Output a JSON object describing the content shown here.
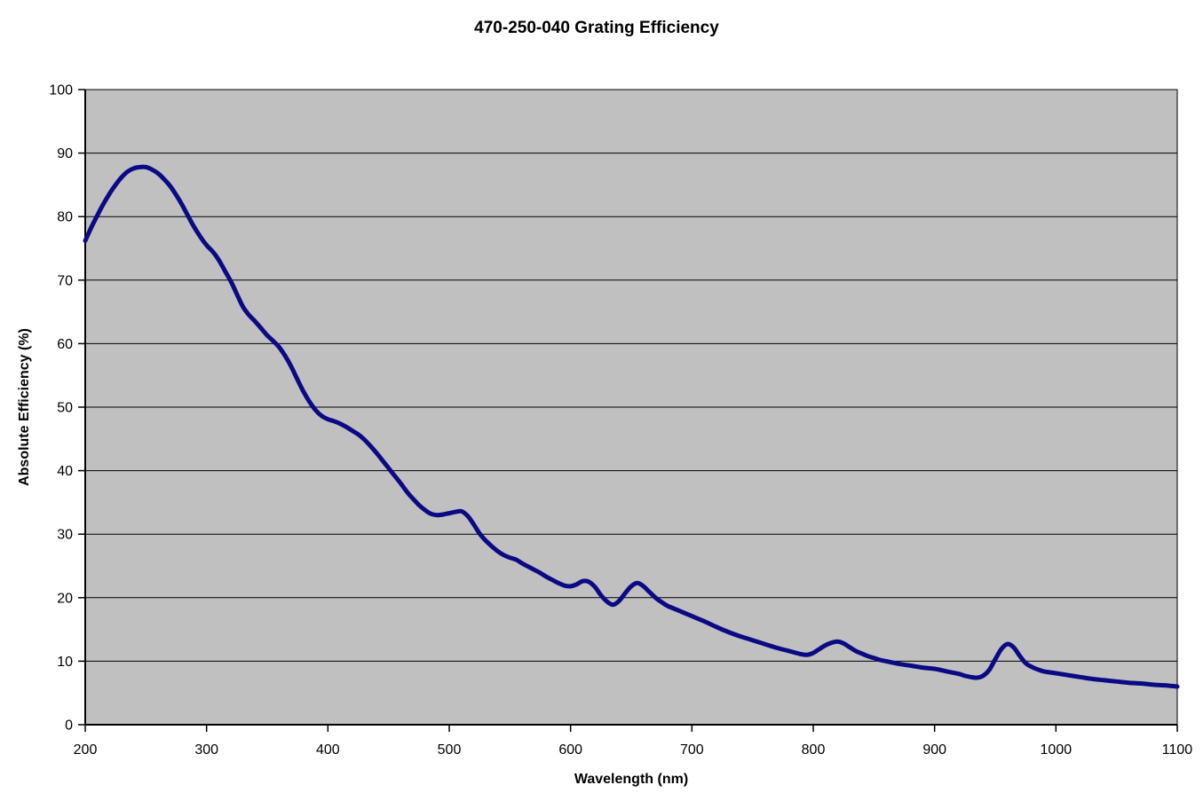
{
  "chart_data": {
    "type": "line",
    "title": "470-250-040 Grating Efficiency",
    "xlabel": "Wavelength (nm)",
    "ylabel": "Absolute Efficiency (%)",
    "xlim": [
      200,
      1100
    ],
    "ylim": [
      0,
      100
    ],
    "x_ticks": [
      200,
      300,
      400,
      500,
      600,
      700,
      800,
      900,
      1000,
      1100
    ],
    "y_ticks": [
      0,
      10,
      20,
      30,
      40,
      50,
      60,
      70,
      80,
      90,
      100
    ],
    "grid": "horizontal-only",
    "legend": "none",
    "colors": {
      "line": "#0a0a85",
      "plot_bg": "#c0c0c0",
      "outer_bg": "#ffffff",
      "gridline": "#000000",
      "axis": "#000000",
      "text": "#000000"
    },
    "series": [
      {
        "name": "Absolute Efficiency",
        "points": [
          [
            200,
            76.2
          ],
          [
            205,
            78.3
          ],
          [
            210,
            80.2
          ],
          [
            215,
            82.0
          ],
          [
            220,
            83.6
          ],
          [
            225,
            85.0
          ],
          [
            230,
            86.2
          ],
          [
            235,
            87.1
          ],
          [
            240,
            87.6
          ],
          [
            245,
            87.8
          ],
          [
            250,
            87.8
          ],
          [
            255,
            87.4
          ],
          [
            260,
            86.8
          ],
          [
            265,
            85.9
          ],
          [
            270,
            84.8
          ],
          [
            275,
            83.4
          ],
          [
            280,
            81.8
          ],
          [
            285,
            80.0
          ],
          [
            290,
            78.3
          ],
          [
            295,
            76.8
          ],
          [
            300,
            75.5
          ],
          [
            305,
            74.5
          ],
          [
            310,
            73.2
          ],
          [
            315,
            71.5
          ],
          [
            320,
            69.8
          ],
          [
            325,
            67.8
          ],
          [
            330,
            65.8
          ],
          [
            335,
            64.5
          ],
          [
            340,
            63.5
          ],
          [
            345,
            62.4
          ],
          [
            350,
            61.3
          ],
          [
            355,
            60.4
          ],
          [
            360,
            59.4
          ],
          [
            365,
            58.0
          ],
          [
            370,
            56.3
          ],
          [
            375,
            54.3
          ],
          [
            380,
            52.4
          ],
          [
            385,
            50.8
          ],
          [
            390,
            49.5
          ],
          [
            395,
            48.6
          ],
          [
            400,
            48.1
          ],
          [
            405,
            47.8
          ],
          [
            410,
            47.4
          ],
          [
            415,
            46.9
          ],
          [
            420,
            46.3
          ],
          [
            425,
            45.7
          ],
          [
            430,
            44.9
          ],
          [
            435,
            43.9
          ],
          [
            440,
            42.8
          ],
          [
            445,
            41.6
          ],
          [
            450,
            40.4
          ],
          [
            455,
            39.2
          ],
          [
            460,
            38.0
          ],
          [
            465,
            36.7
          ],
          [
            470,
            35.6
          ],
          [
            475,
            34.6
          ],
          [
            480,
            33.8
          ],
          [
            485,
            33.2
          ],
          [
            490,
            33.0
          ],
          [
            495,
            33.1
          ],
          [
            500,
            33.3
          ],
          [
            505,
            33.5
          ],
          [
            510,
            33.6
          ],
          [
            515,
            32.9
          ],
          [
            520,
            31.6
          ],
          [
            525,
            30.1
          ],
          [
            530,
            29.0
          ],
          [
            535,
            28.1
          ],
          [
            540,
            27.3
          ],
          [
            545,
            26.7
          ],
          [
            550,
            26.3
          ],
          [
            555,
            26.0
          ],
          [
            560,
            25.4
          ],
          [
            565,
            24.9
          ],
          [
            570,
            24.4
          ],
          [
            575,
            23.9
          ],
          [
            580,
            23.3
          ],
          [
            585,
            22.8
          ],
          [
            590,
            22.3
          ],
          [
            595,
            21.9
          ],
          [
            600,
            21.8
          ],
          [
            605,
            22.1
          ],
          [
            610,
            22.6
          ],
          [
            615,
            22.5
          ],
          [
            620,
            21.7
          ],
          [
            625,
            20.4
          ],
          [
            630,
            19.4
          ],
          [
            635,
            18.9
          ],
          [
            640,
            19.5
          ],
          [
            645,
            20.7
          ],
          [
            650,
            21.8
          ],
          [
            655,
            22.3
          ],
          [
            660,
            21.8
          ],
          [
            665,
            20.9
          ],
          [
            670,
            20.0
          ],
          [
            675,
            19.3
          ],
          [
            680,
            18.7
          ],
          [
            685,
            18.3
          ],
          [
            690,
            17.9
          ],
          [
            700,
            17.1
          ],
          [
            710,
            16.3
          ],
          [
            720,
            15.4
          ],
          [
            730,
            14.6
          ],
          [
            740,
            13.9
          ],
          [
            750,
            13.3
          ],
          [
            760,
            12.7
          ],
          [
            770,
            12.1
          ],
          [
            780,
            11.6
          ],
          [
            790,
            11.1
          ],
          [
            795,
            11.0
          ],
          [
            800,
            11.3
          ],
          [
            805,
            11.9
          ],
          [
            810,
            12.5
          ],
          [
            815,
            12.9
          ],
          [
            820,
            13.1
          ],
          [
            825,
            12.8
          ],
          [
            830,
            12.2
          ],
          [
            835,
            11.6
          ],
          [
            840,
            11.2
          ],
          [
            845,
            10.8
          ],
          [
            850,
            10.5
          ],
          [
            855,
            10.2
          ],
          [
            860,
            10.0
          ],
          [
            870,
            9.6
          ],
          [
            880,
            9.3
          ],
          [
            890,
            9.0
          ],
          [
            900,
            8.8
          ],
          [
            910,
            8.4
          ],
          [
            920,
            8.0
          ],
          [
            925,
            7.7
          ],
          [
            930,
            7.5
          ],
          [
            935,
            7.4
          ],
          [
            940,
            7.7
          ],
          [
            945,
            8.6
          ],
          [
            950,
            10.3
          ],
          [
            955,
            11.9
          ],
          [
            960,
            12.7
          ],
          [
            965,
            12.2
          ],
          [
            970,
            10.9
          ],
          [
            975,
            9.7
          ],
          [
            980,
            9.1
          ],
          [
            985,
            8.7
          ],
          [
            990,
            8.4
          ],
          [
            1000,
            8.1
          ],
          [
            1010,
            7.8
          ],
          [
            1020,
            7.5
          ],
          [
            1030,
            7.2
          ],
          [
            1040,
            7.0
          ],
          [
            1050,
            6.8
          ],
          [
            1060,
            6.6
          ],
          [
            1070,
            6.5
          ],
          [
            1080,
            6.3
          ],
          [
            1090,
            6.2
          ],
          [
            1100,
            6.0
          ]
        ]
      }
    ]
  }
}
